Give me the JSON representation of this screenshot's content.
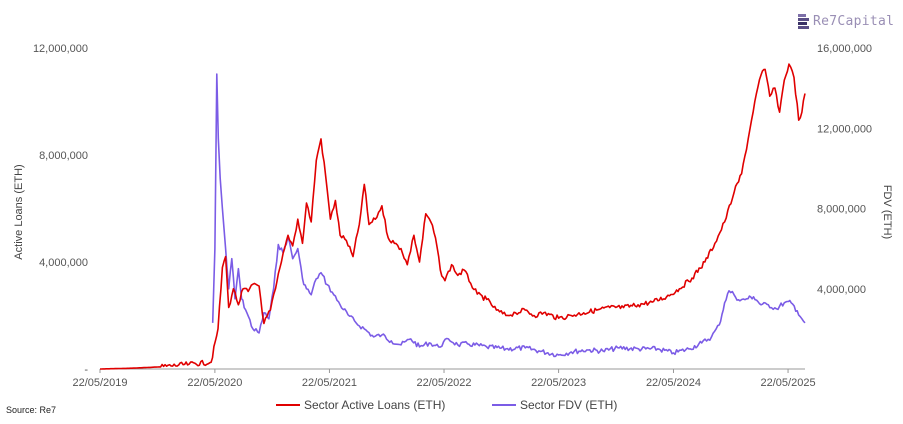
{
  "logo": {
    "text": "Re7Capital"
  },
  "source": "Source: Re7",
  "colors": {
    "loans": "#e00000",
    "fdv": "#7b5ce6",
    "axis": "#999999"
  },
  "chart_data": {
    "type": "line",
    "title": "",
    "xlabel": "",
    "ylabel": "Active Loans (ETH)",
    "y2label": "FDV (ETH)",
    "x_range": [
      "2019-05-22",
      "2025-07-15"
    ],
    "ylim": [
      0,
      12000000
    ],
    "y2lim": [
      0,
      16000000
    ],
    "x_ticks": [
      "22/05/2019",
      "22/05/2020",
      "22/05/2021",
      "22/05/2022",
      "22/05/2023",
      "22/05/2024",
      "22/05/2025"
    ],
    "y_ticks": [
      "-",
      "4,000,000",
      "8,000,000",
      "12,000,000"
    ],
    "y2_ticks": [
      "4,000,000",
      "8,000,000",
      "12,000,000",
      "16,000,000"
    ],
    "legend": {
      "position": "bottom"
    },
    "grid": false,
    "series": [
      {
        "name": "Sector Active Loans (ETH)",
        "axis": "left",
        "points": [
          [
            "2019-05-22",
            0
          ],
          [
            "2019-09-01",
            30000
          ],
          [
            "2019-12-01",
            80000
          ],
          [
            "2020-03-01",
            180000
          ],
          [
            "2020-05-10",
            250000
          ],
          [
            "2020-06-01",
            1500000
          ],
          [
            "2020-06-15",
            3800000
          ],
          [
            "2020-06-25",
            4200000
          ],
          [
            "2020-07-05",
            2300000
          ],
          [
            "2020-07-20",
            3000000
          ],
          [
            "2020-08-05",
            2400000
          ],
          [
            "2020-08-20",
            3000000
          ],
          [
            "2020-09-05",
            2900000
          ],
          [
            "2020-09-25",
            3200000
          ],
          [
            "2020-10-10",
            3100000
          ],
          [
            "2020-10-25",
            1700000
          ],
          [
            "2020-11-15",
            2200000
          ],
          [
            "2020-12-01",
            3000000
          ],
          [
            "2020-12-20",
            4000000
          ],
          [
            "2021-01-10",
            5000000
          ],
          [
            "2021-01-25",
            4600000
          ],
          [
            "2021-02-10",
            5600000
          ],
          [
            "2021-02-25",
            4700000
          ],
          [
            "2021-03-10",
            6200000
          ],
          [
            "2021-03-25",
            5500000
          ],
          [
            "2021-04-10",
            7800000
          ],
          [
            "2021-04-25",
            8600000
          ],
          [
            "2021-05-10",
            7200000
          ],
          [
            "2021-05-25",
            5600000
          ],
          [
            "2021-06-10",
            6300000
          ],
          [
            "2021-06-25",
            5000000
          ],
          [
            "2021-07-15",
            4800000
          ],
          [
            "2021-08-05",
            4200000
          ],
          [
            "2021-08-25",
            5400000
          ],
          [
            "2021-09-10",
            6900000
          ],
          [
            "2021-09-25",
            5400000
          ],
          [
            "2021-10-15",
            5600000
          ],
          [
            "2021-11-05",
            6100000
          ],
          [
            "2021-11-25",
            4900000
          ],
          [
            "2021-12-15",
            4700000
          ],
          [
            "2022-01-05",
            4500000
          ],
          [
            "2022-01-25",
            3900000
          ],
          [
            "2022-02-15",
            5000000
          ],
          [
            "2022-03-05",
            4000000
          ],
          [
            "2022-03-25",
            5800000
          ],
          [
            "2022-04-10",
            5500000
          ],
          [
            "2022-04-25",
            4900000
          ],
          [
            "2022-05-10",
            3700000
          ],
          [
            "2022-05-25",
            3300000
          ],
          [
            "2022-06-15",
            3900000
          ],
          [
            "2022-07-05",
            3500000
          ],
          [
            "2022-07-25",
            3700000
          ],
          [
            "2022-08-15",
            3200000
          ],
          [
            "2022-09-05",
            2800000
          ],
          [
            "2022-10-05",
            2600000
          ],
          [
            "2022-11-05",
            2200000
          ],
          [
            "2022-12-05",
            2000000
          ],
          [
            "2023-01-05",
            2100000
          ],
          [
            "2023-02-05",
            2200000
          ],
          [
            "2023-03-05",
            2000000
          ],
          [
            "2023-04-05",
            2100000
          ],
          [
            "2023-05-22",
            1900000
          ],
          [
            "2023-07-01",
            2000000
          ],
          [
            "2023-08-10",
            2100000
          ],
          [
            "2023-09-20",
            2200000
          ],
          [
            "2023-11-01",
            2300000
          ],
          [
            "2023-12-15",
            2300000
          ],
          [
            "2024-01-30",
            2400000
          ],
          [
            "2024-03-15",
            2500000
          ],
          [
            "2024-04-30",
            2700000
          ],
          [
            "2024-06-10",
            3000000
          ],
          [
            "2024-07-20",
            3400000
          ],
          [
            "2024-08-30",
            4000000
          ],
          [
            "2024-10-01",
            4700000
          ],
          [
            "2024-11-01",
            5500000
          ],
          [
            "2024-12-01",
            6600000
          ],
          [
            "2024-12-25",
            7300000
          ],
          [
            "2025-01-15",
            8600000
          ],
          [
            "2025-02-05",
            10000000
          ],
          [
            "2025-02-25",
            11000000
          ],
          [
            "2025-03-10",
            11200000
          ],
          [
            "2025-03-25",
            10200000
          ],
          [
            "2025-04-10",
            10500000
          ],
          [
            "2025-04-25",
            9600000
          ],
          [
            "2025-05-10",
            10800000
          ],
          [
            "2025-05-25",
            11400000
          ],
          [
            "2025-06-10",
            10900000
          ],
          [
            "2025-06-25",
            9300000
          ],
          [
            "2025-07-05",
            9600000
          ],
          [
            "2025-07-15",
            10300000
          ]
        ]
      },
      {
        "name": "Sector FDV (ETH)",
        "axis": "right",
        "points": [
          [
            "2020-05-15",
            2300000
          ],
          [
            "2020-05-22",
            6000000
          ],
          [
            "2020-05-28",
            14700000
          ],
          [
            "2020-06-02",
            11500000
          ],
          [
            "2020-06-08",
            9500000
          ],
          [
            "2020-06-15",
            8000000
          ],
          [
            "2020-06-25",
            6000000
          ],
          [
            "2020-07-05",
            4000000
          ],
          [
            "2020-07-15",
            5500000
          ],
          [
            "2020-07-25",
            3500000
          ],
          [
            "2020-08-05",
            5000000
          ],
          [
            "2020-08-15",
            3500000
          ],
          [
            "2020-09-01",
            2800000
          ],
          [
            "2020-09-20",
            2000000
          ],
          [
            "2020-10-10",
            1800000
          ],
          [
            "2020-10-25",
            2800000
          ],
          [
            "2020-11-10",
            2500000
          ],
          [
            "2020-11-25",
            4000000
          ],
          [
            "2020-12-10",
            6200000
          ],
          [
            "2020-12-25",
            5800000
          ],
          [
            "2021-01-10",
            6600000
          ],
          [
            "2021-01-25",
            5500000
          ],
          [
            "2021-02-10",
            6000000
          ],
          [
            "2021-02-25",
            4500000
          ],
          [
            "2021-03-10",
            4000000
          ],
          [
            "2021-03-25",
            3700000
          ],
          [
            "2021-04-10",
            4500000
          ],
          [
            "2021-04-25",
            4800000
          ],
          [
            "2021-05-15",
            4200000
          ],
          [
            "2021-06-05",
            3700000
          ],
          [
            "2021-06-25",
            3200000
          ],
          [
            "2021-07-20",
            2700000
          ],
          [
            "2021-08-15",
            2300000
          ],
          [
            "2021-09-10",
            2000000
          ],
          [
            "2021-10-10",
            1600000
          ],
          [
            "2021-11-05",
            1700000
          ],
          [
            "2021-12-05",
            1400000
          ],
          [
            "2022-01-05",
            1200000
          ],
          [
            "2022-02-05",
            1500000
          ],
          [
            "2022-03-05",
            1100000
          ],
          [
            "2022-04-05",
            1300000
          ],
          [
            "2022-05-05",
            1100000
          ],
          [
            "2022-06-05",
            1500000
          ],
          [
            "2022-07-05",
            1200000
          ],
          [
            "2022-08-05",
            1250000
          ],
          [
            "2022-10-05",
            1100000
          ],
          [
            "2022-12-05",
            1000000
          ],
          [
            "2023-02-05",
            1050000
          ],
          [
            "2023-03-20",
            900000
          ],
          [
            "2023-05-22",
            700000
          ],
          [
            "2023-07-01",
            850000
          ],
          [
            "2023-08-20",
            950000
          ],
          [
            "2023-10-10",
            900000
          ],
          [
            "2023-12-01",
            1050000
          ],
          [
            "2024-02-01",
            1000000
          ],
          [
            "2024-04-01",
            1000000
          ],
          [
            "2024-05-22",
            800000
          ],
          [
            "2024-07-10",
            1000000
          ],
          [
            "2024-08-20",
            1300000
          ],
          [
            "2024-09-20",
            1600000
          ],
          [
            "2024-10-15",
            2200000
          ],
          [
            "2024-11-01",
            3300000
          ],
          [
            "2024-11-15",
            3900000
          ],
          [
            "2024-12-01",
            3700000
          ],
          [
            "2024-12-20",
            3400000
          ],
          [
            "2025-01-10",
            3500000
          ],
          [
            "2025-02-01",
            3600000
          ],
          [
            "2025-02-25",
            3200000
          ],
          [
            "2025-03-20",
            3200000
          ],
          [
            "2025-04-15",
            3000000
          ],
          [
            "2025-05-10",
            3300000
          ],
          [
            "2025-06-01",
            3300000
          ],
          [
            "2025-06-20",
            2900000
          ],
          [
            "2025-07-05",
            2500000
          ],
          [
            "2025-07-15",
            2300000
          ]
        ]
      }
    ]
  }
}
